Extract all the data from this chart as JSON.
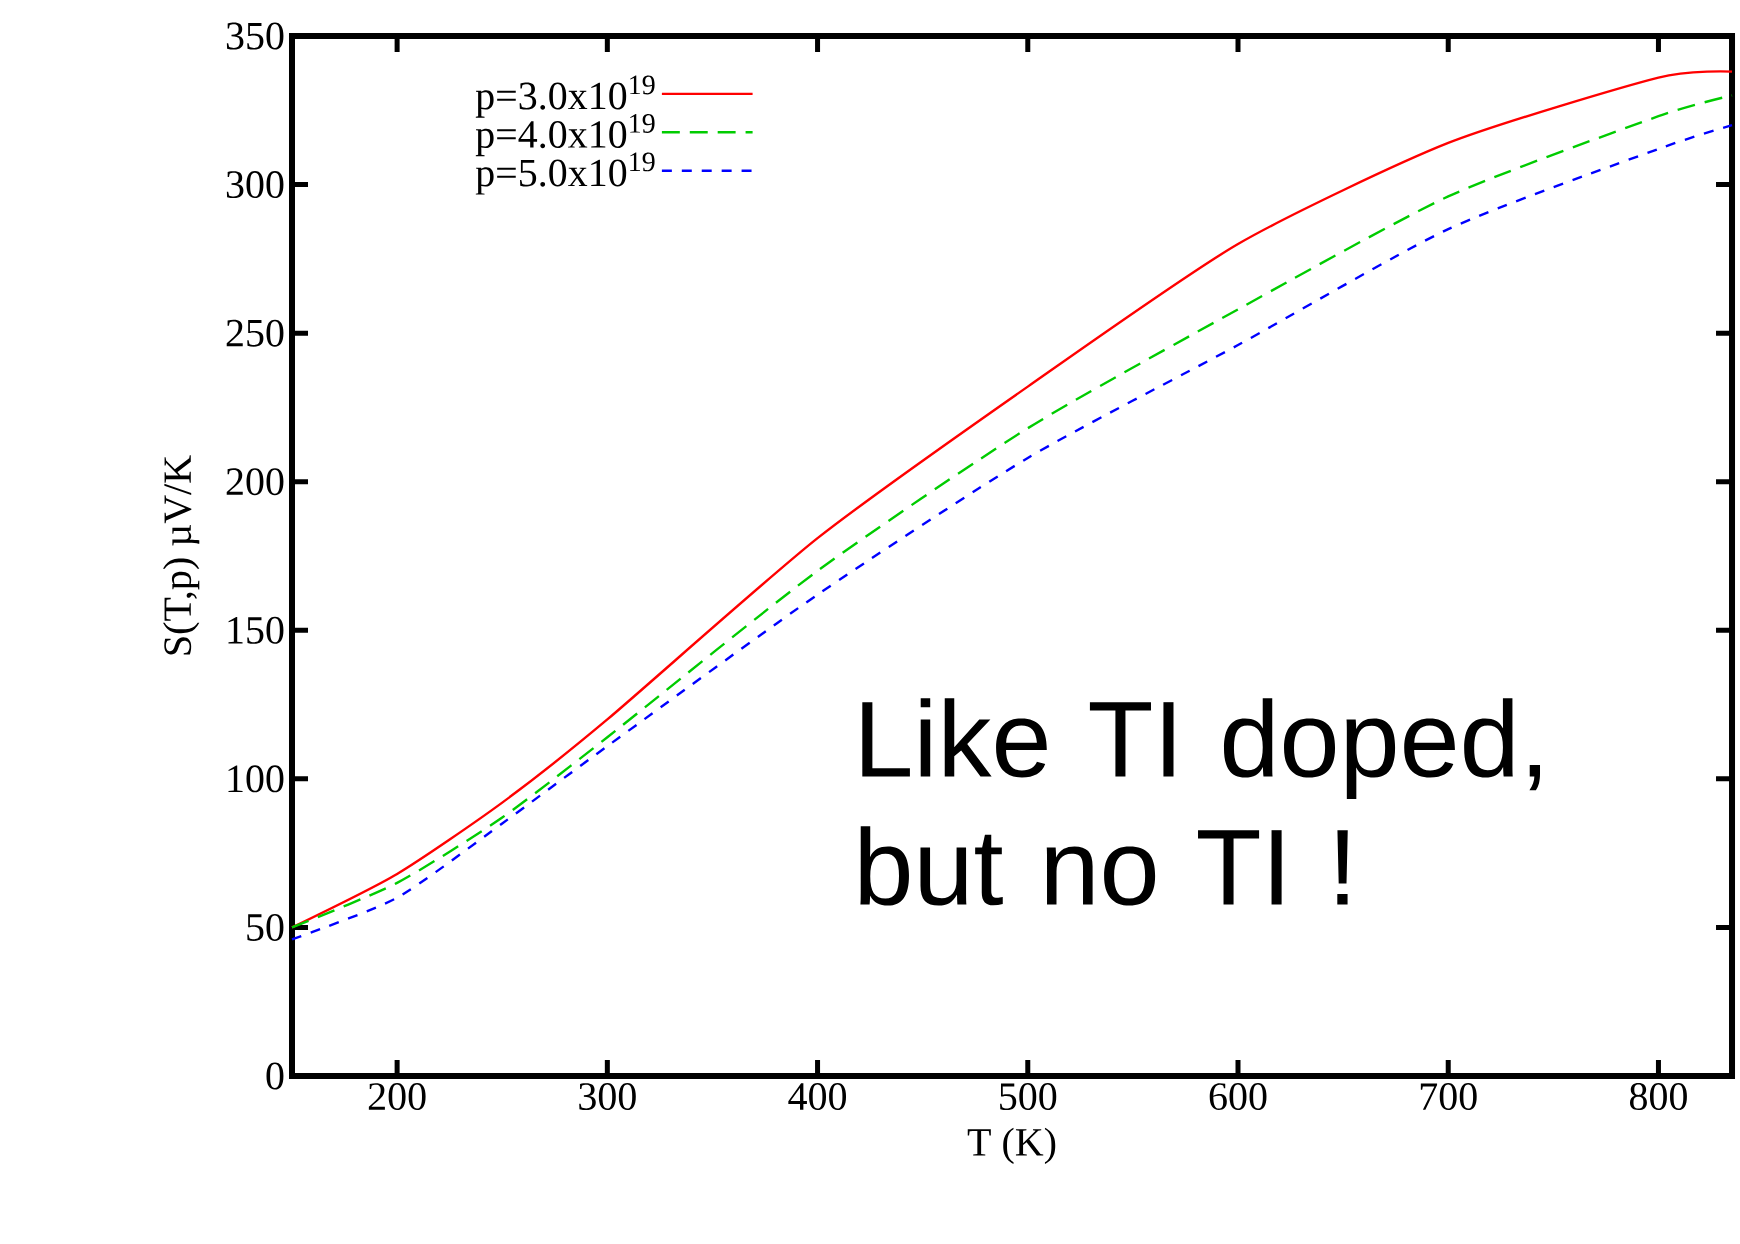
{
  "chart_data": {
    "type": "line",
    "xlabel": "T (K)",
    "ylabel": "S(T,p) µV/K",
    "xlim": [
      150,
      835
    ],
    "xticks": [
      200,
      300,
      400,
      500,
      600,
      700,
      800
    ],
    "ylim": [
      0,
      350
    ],
    "yticks": [
      0,
      50,
      100,
      150,
      200,
      250,
      300,
      350
    ],
    "x": [
      150,
      200,
      250,
      300,
      400,
      500,
      600,
      700,
      800,
      835
    ],
    "series": [
      {
        "name": "p=3.0x10$^{19}$",
        "color": "#ff0000",
        "line_style": "solid",
        "values": [
          50,
          68,
          92,
          120,
          181,
          232,
          280,
          314,
          336,
          338
        ]
      },
      {
        "name": "p=4.0x10$^{19}$",
        "color": "#00cc00",
        "line_style": "dashed",
        "values": [
          50,
          65,
          87,
          114,
          170,
          218,
          258,
          296,
          323,
          330
        ]
      },
      {
        "name": "p=5.0x10$^{19}$",
        "color": "#0000ff",
        "line_style": "dashed",
        "values": [
          46,
          60,
          85,
          111,
          162,
          208,
          246,
          285,
          312,
          320
        ]
      }
    ],
    "legend": "top left",
    "grid": false,
    "marker": "none",
    "annotations": [
      "Like TI doped, but no TI !"
    ]
  }
}
